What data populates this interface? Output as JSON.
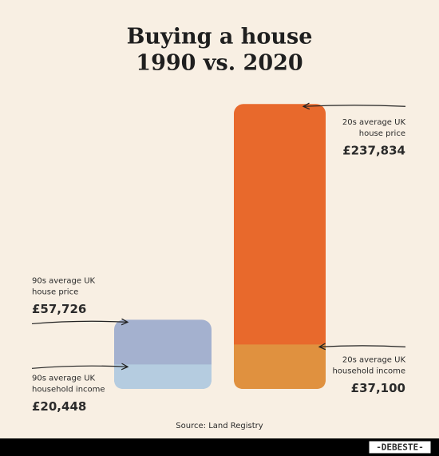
{
  "chart_data": {
    "type": "bar",
    "title_lines": [
      "Buying a house",
      "1990 vs. 2020"
    ],
    "ylim": [
      0,
      240000
    ],
    "series": [
      {
        "name": "house price",
        "colors": [
          "#a4b1cf",
          "#e8692c"
        ],
        "values": [
          57726,
          237834
        ],
        "value_labels": [
          "£57,726",
          "£237,834"
        ],
        "label_lines": [
          [
            "90s average UK",
            "house price"
          ],
          [
            "20s average UK",
            "house price"
          ]
        ]
      },
      {
        "name": "household income",
        "colors": [
          "#b5cce0",
          "#e0913f"
        ],
        "values": [
          20448,
          37100
        ],
        "value_labels": [
          "£20,448",
          "£37,100"
        ],
        "label_lines": [
          [
            "90s average UK",
            "household income"
          ],
          [
            "20s average UK",
            "household income"
          ]
        ]
      }
    ],
    "source": "Source: Land Registry",
    "watermark": "-DEBESTE-"
  }
}
